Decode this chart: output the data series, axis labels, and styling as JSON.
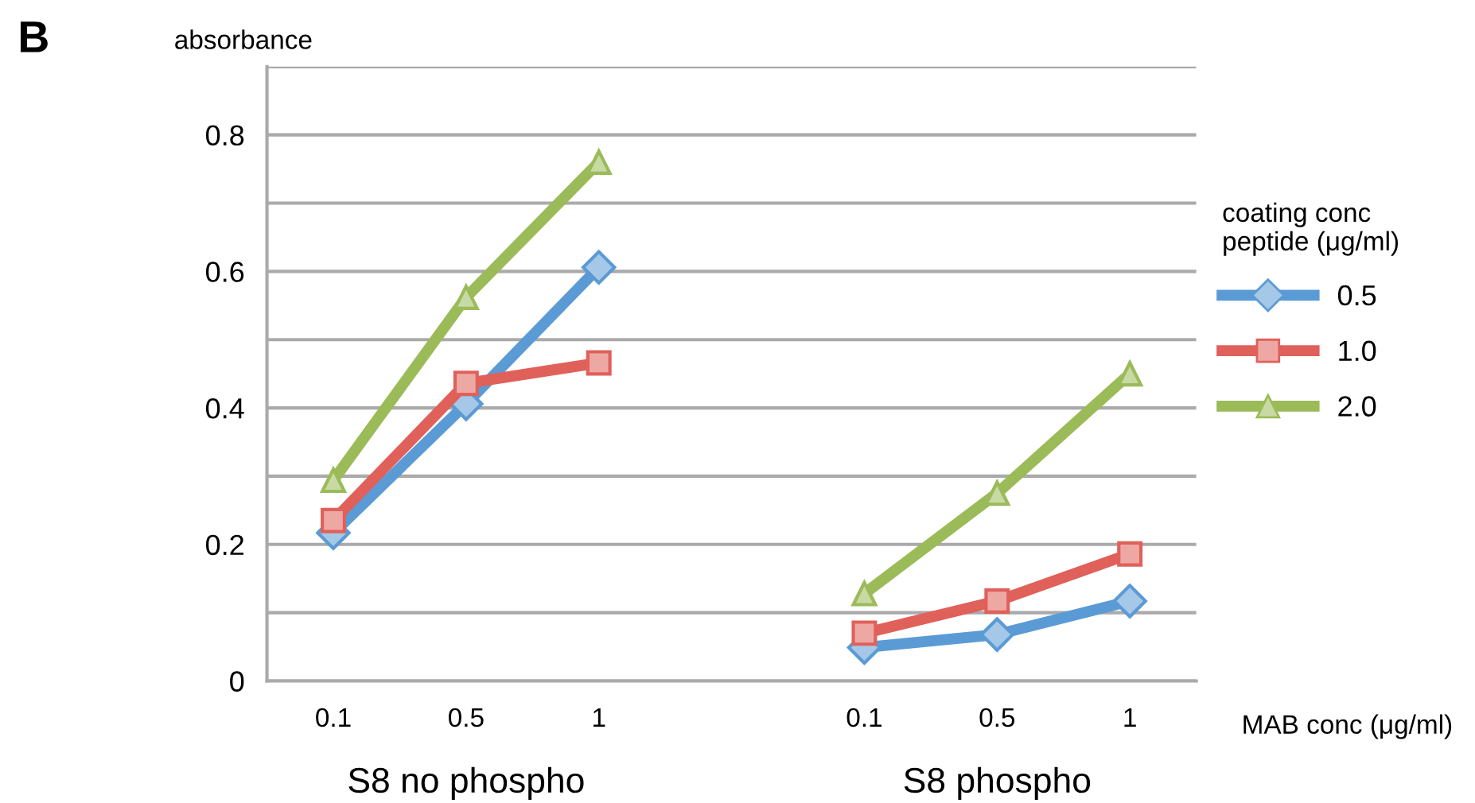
{
  "chart_data": {
    "type": "line",
    "ylabel": "absorbance",
    "xlabel": "MAB conc (μg/ml)",
    "legend_title": "coating conc\npeptide (μg/ml)",
    "categories": [
      "0.1",
      "0.5",
      "1",
      null,
      "0.1",
      "0.5",
      "1"
    ],
    "series": [
      {
        "name": "0.5",
        "color": "#5b9bd5",
        "marker": "diamond",
        "values": [
          0.217,
          0.406,
          0.606,
          null,
          0.049,
          0.068,
          0.117
        ]
      },
      {
        "name": "1.0",
        "color": "#e0605a",
        "marker": "square",
        "values": [
          0.235,
          0.436,
          0.466,
          null,
          0.07,
          0.117,
          0.186
        ]
      },
      {
        "name": "2.0",
        "color": "#9bbb59",
        "marker": "triangle",
        "values": [
          0.294,
          0.562,
          0.76,
          null,
          0.128,
          0.275,
          0.45
        ]
      }
    ],
    "ylim": [
      0,
      0.9
    ],
    "yticks": [
      0,
      {
        "value": 0.1,
        "label": null
      },
      0.2,
      {
        "value": 0.3,
        "label": null
      },
      0.4,
      {
        "value": 0.5,
        "label": null
      },
      0.6,
      {
        "value": 0.7,
        "label": null
      },
      0.8,
      {
        "value": 0.9,
        "label": null
      }
    ],
    "grid": "y",
    "legend": "right",
    "line_style": "solid",
    "annotations": [
      "B",
      "S8 no phospho",
      "S8 phospho"
    ]
  }
}
